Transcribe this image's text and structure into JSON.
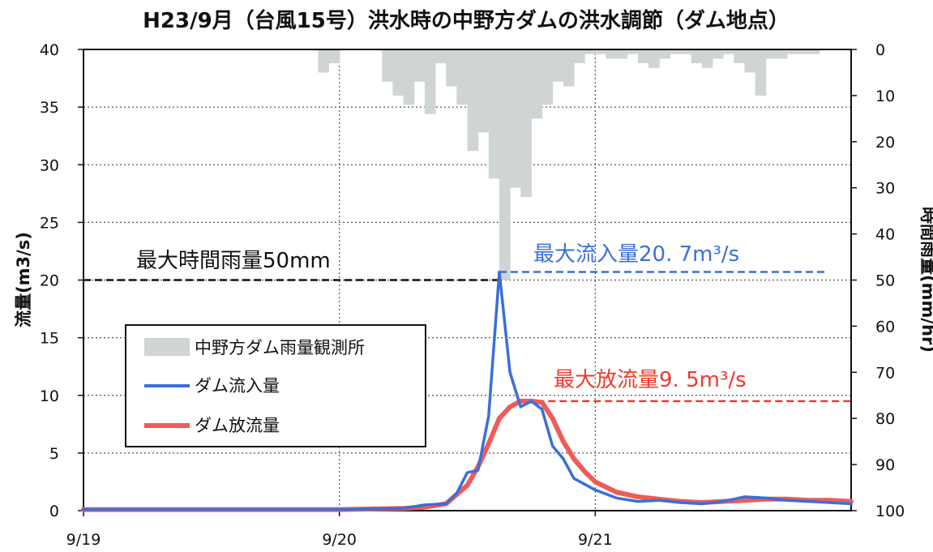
{
  "chart_data": {
    "type": "bar+line",
    "title": "H23/9月（台風15号）洪水時の中野方ダムの洪水調節（ダム地点）",
    "ylabel_left": "流量(m3/s)",
    "ylabel_right": "時間雨量(mm/hr)",
    "ylim_left": [
      0,
      40
    ],
    "ylim_right": [
      0,
      100
    ],
    "right_axis_inverted": true,
    "grid": true,
    "legend_placement": "lower-left",
    "y_ticks_left": [
      "0",
      "5",
      "10",
      "15",
      "20",
      "25",
      "30",
      "35",
      "40"
    ],
    "y_ticks_right": [
      "0",
      "10",
      "20",
      "30",
      "40",
      "50",
      "60",
      "70",
      "80",
      "90",
      "100"
    ],
    "x_tick_labels": [
      "9/19",
      "9/20",
      "9/21"
    ],
    "x_hours_range": [
      0,
      72
    ],
    "series": [
      {
        "name": "中野方ダム雨量観測所",
        "kind": "bar",
        "axis": "right",
        "color": "#cfd4d4",
        "hours": [
          22,
          23,
          28,
          29,
          30,
          31,
          32,
          33,
          34,
          35,
          36,
          37,
          38,
          39,
          40,
          41,
          42,
          43,
          44,
          45,
          46,
          47,
          48,
          49,
          50,
          51,
          52,
          53,
          54,
          55,
          56,
          57,
          58,
          59,
          60,
          61,
          62,
          63,
          64,
          65,
          66,
          67,
          68
        ],
        "values": [
          5,
          3,
          7,
          10,
          12,
          7,
          14,
          3,
          8,
          12,
          22,
          18,
          28,
          50,
          30,
          32,
          15,
          12,
          7,
          8,
          3,
          1,
          1,
          2,
          2,
          1,
          3,
          4,
          2,
          1,
          1,
          3,
          4,
          2,
          1,
          3,
          5,
          10,
          2,
          2,
          1,
          1,
          1
        ]
      },
      {
        "name": "ダム流入量",
        "kind": "line",
        "axis": "left",
        "color": "#3a6fd8",
        "x": [
          0,
          24,
          30,
          32,
          34,
          35,
          36,
          37,
          38,
          39,
          40,
          41,
          42,
          43,
          44,
          45,
          46,
          48,
          50,
          52,
          54,
          56,
          58,
          60,
          62,
          64,
          66,
          68,
          70,
          72
        ],
        "y": [
          0.1,
          0.1,
          0.2,
          0.5,
          0.6,
          1.5,
          3.3,
          3.5,
          8.2,
          20.7,
          12.0,
          9.0,
          9.5,
          8.8,
          5.6,
          4.5,
          2.8,
          1.8,
          1.1,
          0.8,
          0.9,
          0.7,
          0.6,
          0.8,
          1.2,
          1.1,
          0.9,
          0.8,
          0.7,
          0.6
        ]
      },
      {
        "name": "ダム放流量",
        "kind": "line",
        "axis": "left",
        "color": "#ee5c58",
        "x": [
          0,
          24,
          30,
          32,
          34,
          36,
          37,
          38,
          39,
          40,
          41,
          42,
          43,
          44,
          45,
          46,
          47,
          48,
          50,
          52,
          54,
          56,
          58,
          60,
          62,
          64,
          66,
          68,
          70,
          72
        ],
        "y": [
          0.1,
          0.1,
          0.2,
          0.3,
          0.6,
          2.2,
          3.8,
          5.8,
          8.0,
          9.0,
          9.5,
          9.5,
          9.4,
          8.0,
          6.0,
          4.5,
          3.4,
          2.5,
          1.6,
          1.2,
          1.0,
          0.8,
          0.7,
          0.8,
          0.9,
          1.0,
          1.0,
          0.9,
          0.9,
          0.8
        ]
      }
    ],
    "annotations": [
      {
        "text": "最大時間雨量50mm",
        "color": "#111111"
      },
      {
        "text": "最大流入量20. 7m³/s",
        "color": "#3a6fd8"
      },
      {
        "text": "最大放流量9. 5m³/s",
        "color": "#ee3a2c"
      }
    ]
  }
}
